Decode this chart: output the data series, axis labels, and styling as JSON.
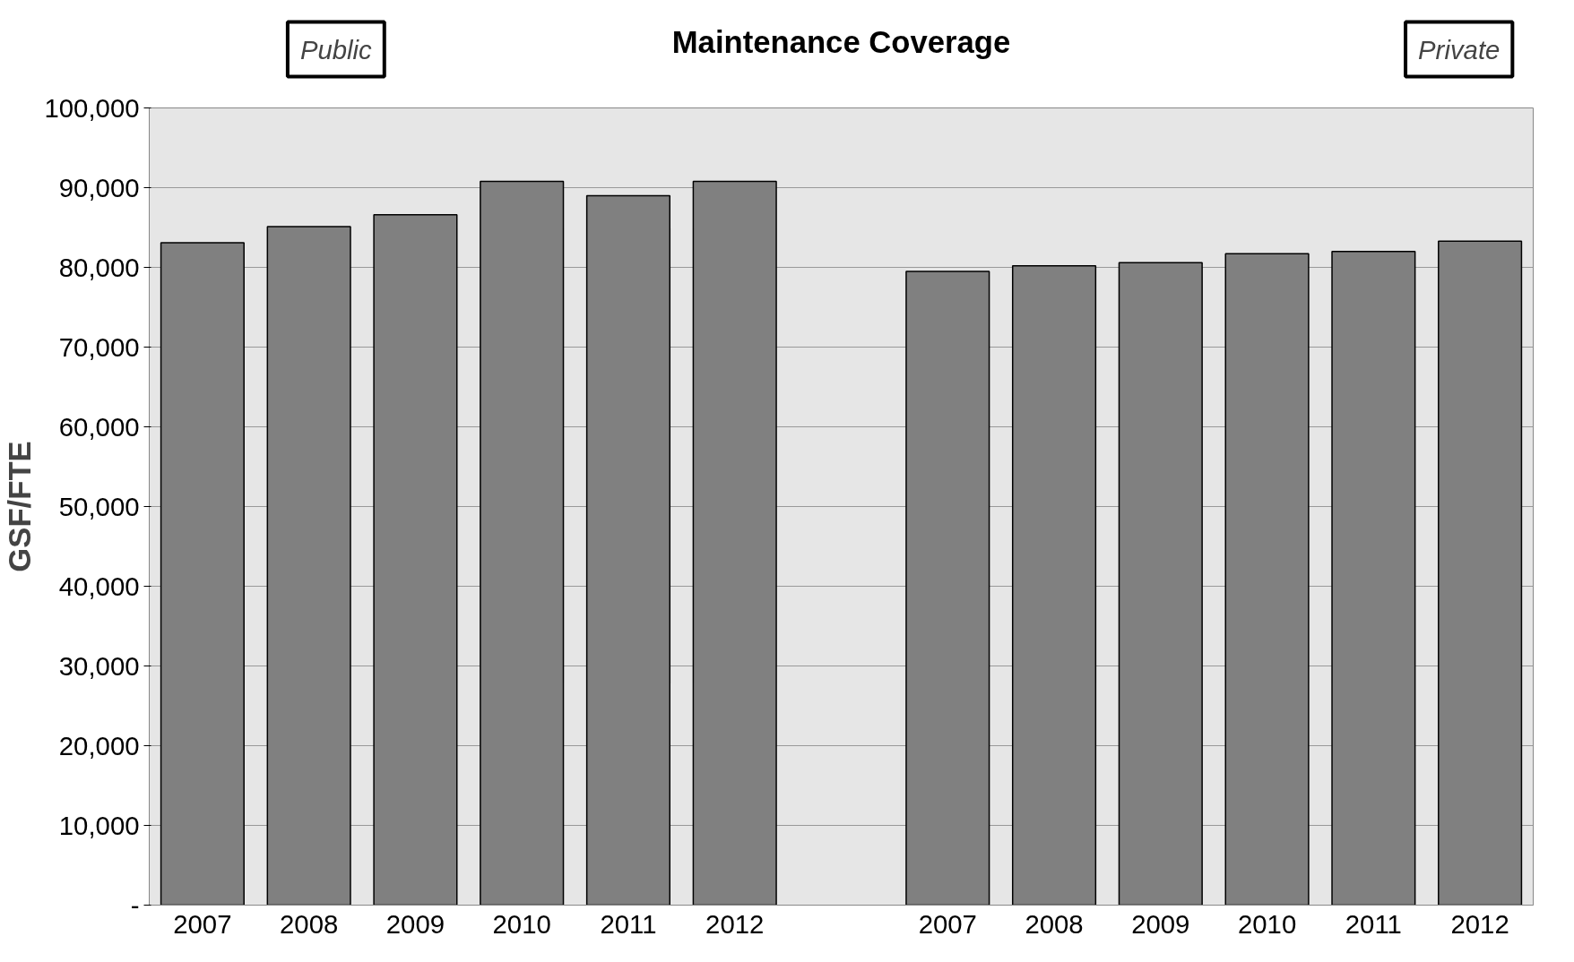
{
  "chart_data": {
    "type": "bar",
    "title": "Maintenance Coverage",
    "ylabel": "GSF/FTE",
    "categories": [
      "2007",
      "2008",
      "2009",
      "2010",
      "2011",
      "2012",
      null,
      "2007",
      "2008",
      "2009",
      "2010",
      "2011",
      "2012"
    ],
    "values": [
      83100,
      85100,
      86600,
      90800,
      89000,
      90800,
      null,
      79500,
      80200,
      80600,
      81700,
      82000,
      83300
    ],
    "color": "#808080",
    "ylim": [
      0,
      100000
    ],
    "yticks": [
      {
        "value": 0,
        "label": "-"
      },
      {
        "value": 10000,
        "label": "10,000"
      },
      {
        "value": 20000,
        "label": "20,000"
      },
      {
        "value": 30000,
        "label": "30,000"
      },
      {
        "value": 40000,
        "label": "40,000"
      },
      {
        "value": 50000,
        "label": "50,000"
      },
      {
        "value": 60000,
        "label": "60,000"
      },
      {
        "value": 70000,
        "label": "70,000"
      },
      {
        "value": 80000,
        "label": "80,000"
      },
      {
        "value": 90000,
        "label": "90,000"
      },
      {
        "value": 100000,
        "label": "100,000"
      }
    ],
    "grid": "y",
    "annotations": [
      "Public",
      "Private"
    ]
  }
}
